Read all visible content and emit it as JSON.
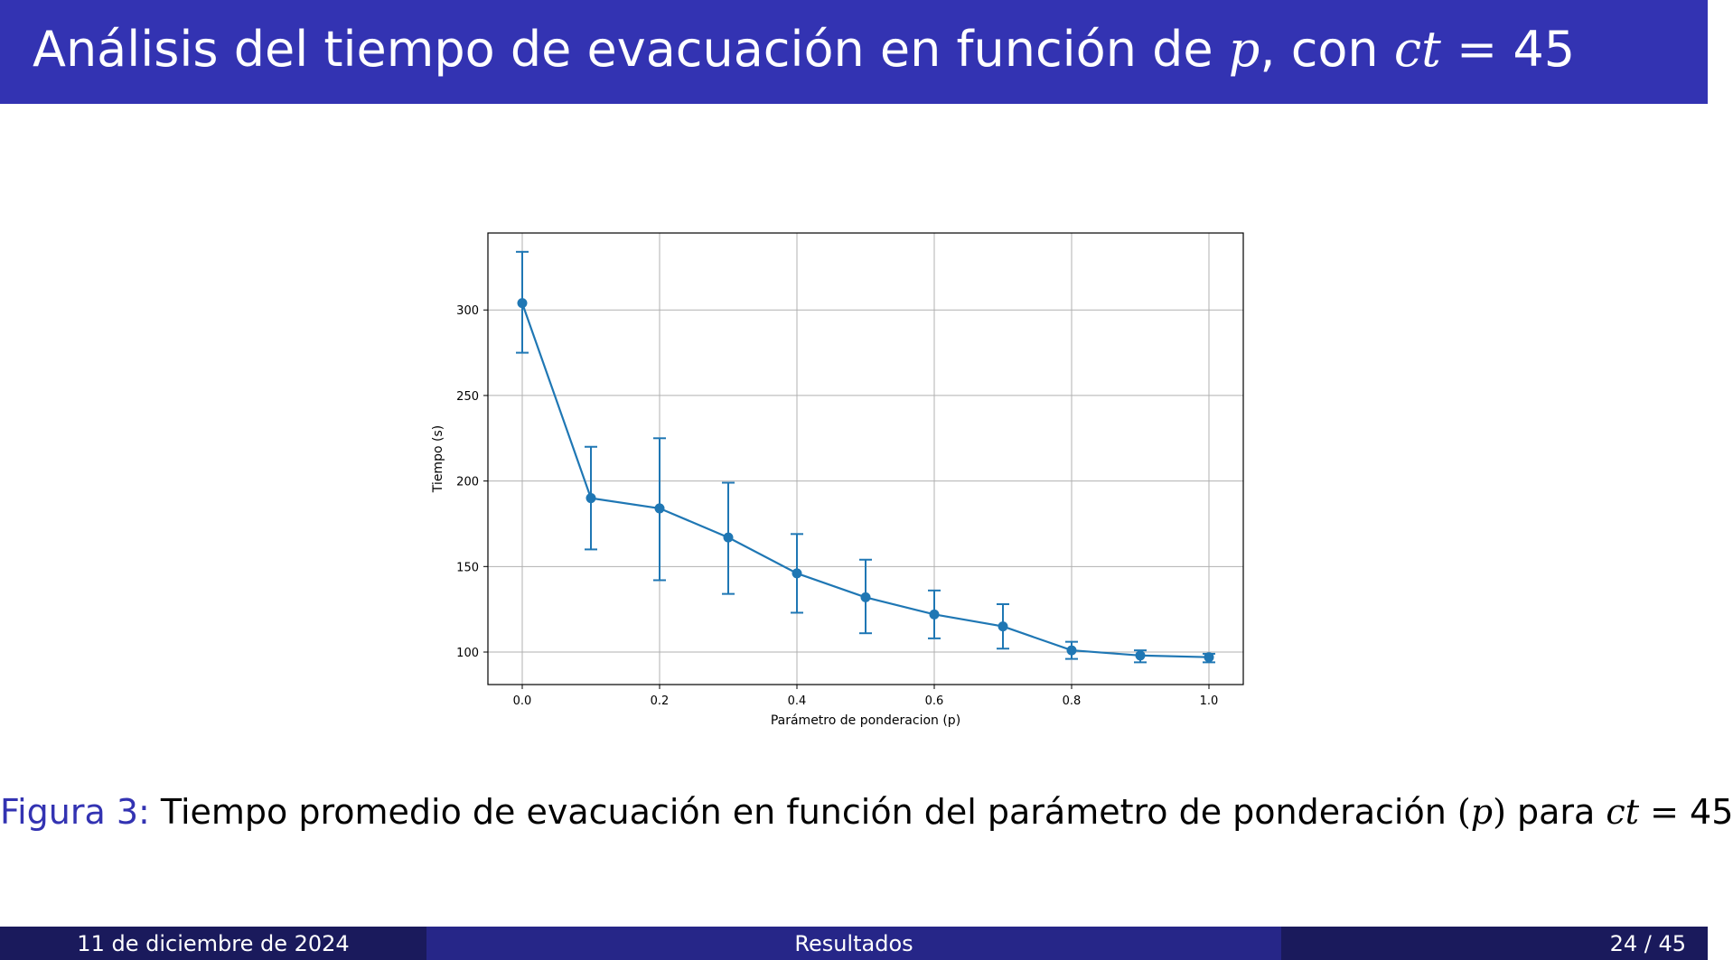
{
  "header": {
    "title_text": "Análisis del tiempo de evacuación en función de",
    "title_var": "p",
    "title_mid": ", con",
    "title_ct": "ct",
    "title_eq": "=",
    "title_value": "45"
  },
  "caption": {
    "label": "Figura 3:",
    "text": "Tiempo promedio de evacuación en función del parámetro de ponderación",
    "paren_open": "(",
    "var": "p",
    "paren_close": ")",
    "mid": "para",
    "ct": "ct",
    "eq": "=",
    "value": "45"
  },
  "footer": {
    "date": "11 de diciembre de 2024",
    "section": "Resultados",
    "page": "24",
    "separator": "/",
    "total": "45"
  },
  "colors": {
    "header_bg": "#3333b2",
    "footer_dark": "#1a1a5c",
    "footer_mid": "#262688",
    "series": "#1f77b4",
    "grid": "#b0b0b0"
  },
  "chart_data": {
    "type": "line",
    "xlabel": "Parámetro de ponderacion (p)",
    "ylabel": "Tiempo (s)",
    "x": [
      0.0,
      0.1,
      0.2,
      0.3,
      0.4,
      0.5,
      0.6,
      0.7,
      0.8,
      0.9,
      1.0
    ],
    "series": [
      {
        "values": [
          304,
          190,
          184,
          167,
          146,
          132,
          122,
          115,
          101,
          98,
          97
        ],
        "err_low": [
          275,
          160,
          142,
          134,
          123,
          111,
          108,
          102,
          96,
          94,
          94
        ],
        "err_high": [
          334,
          220,
          225,
          199,
          169,
          154,
          136,
          128,
          106,
          101,
          99
        ],
        "marker": "circle",
        "error_bars": true
      }
    ],
    "xlim": [
      -0.05,
      1.05
    ],
    "ylim": [
      81,
      345
    ],
    "xticks": [
      0.0,
      0.2,
      0.4,
      0.6,
      0.8,
      1.0
    ],
    "xtick_labels": [
      "0.0",
      "0.2",
      "0.4",
      "0.6",
      "0.8",
      "1.0"
    ],
    "yticks": [
      100,
      150,
      200,
      250,
      300
    ],
    "ytick_labels": [
      "100",
      "150",
      "200",
      "250",
      "300"
    ],
    "grid": true,
    "legend": false
  }
}
